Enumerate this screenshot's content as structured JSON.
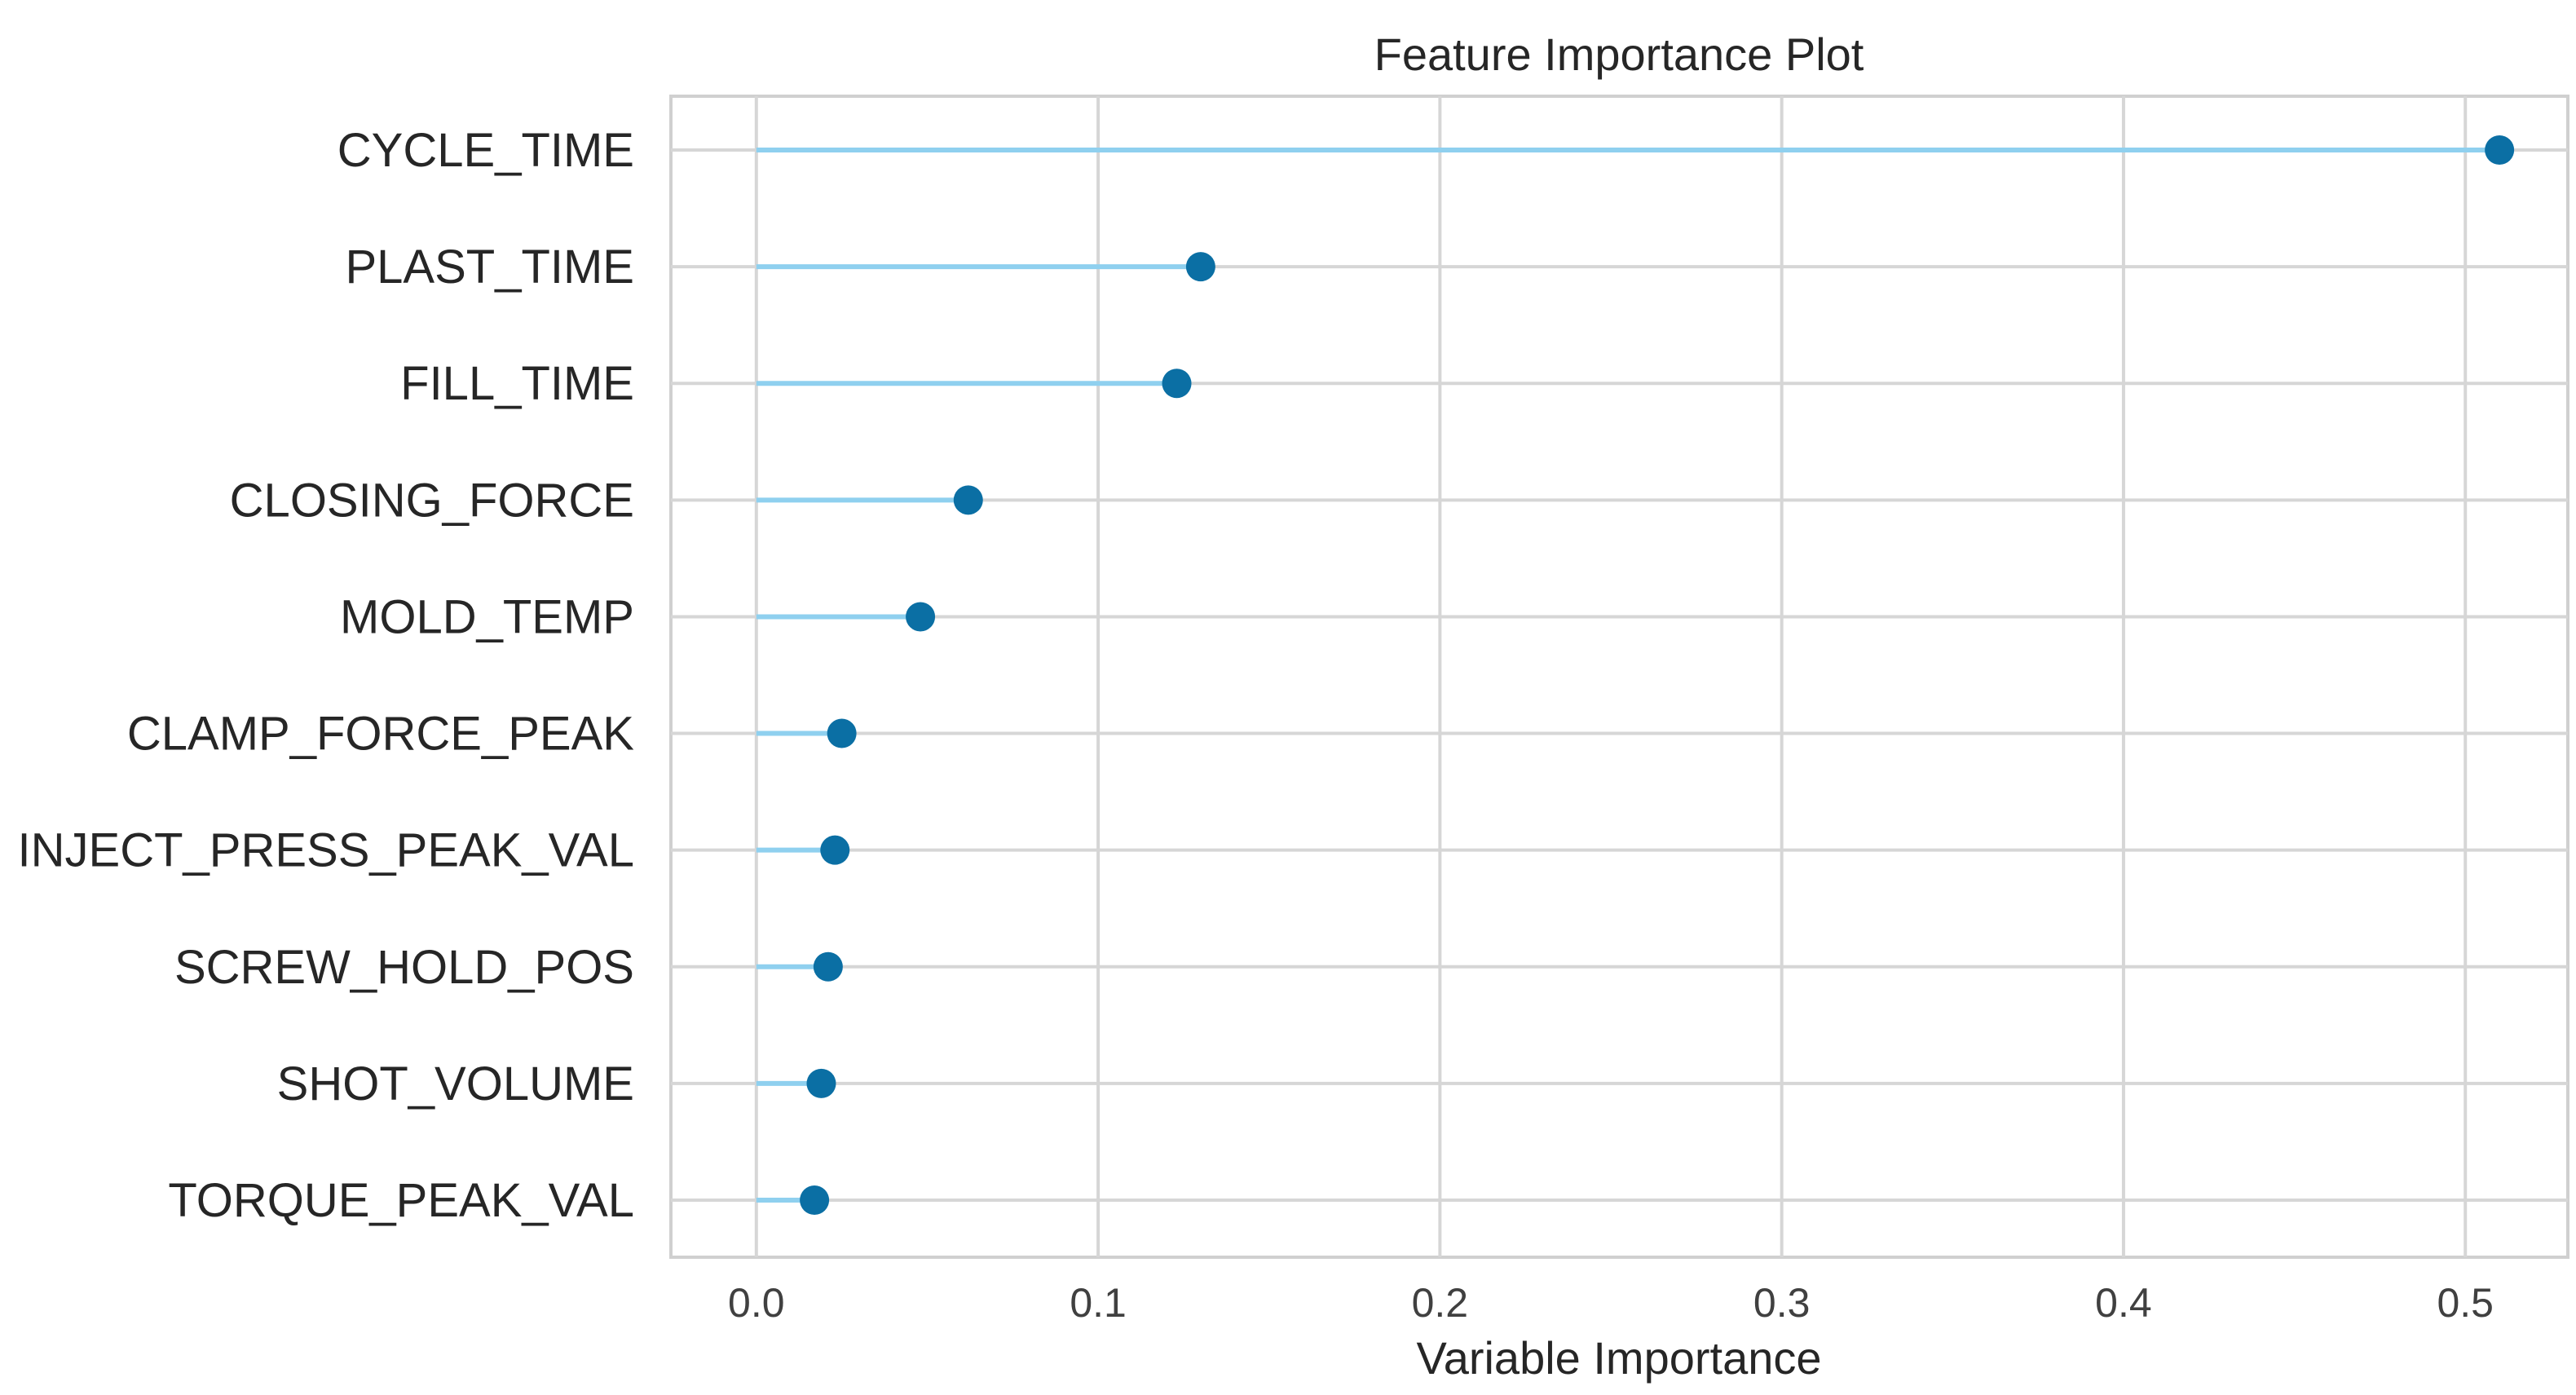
{
  "chart_data": {
    "type": "lollipop",
    "title": "Feature Importance Plot",
    "xlabel": "Variable Importance",
    "ylabel": "",
    "xlim": [
      -0.025,
      0.53
    ],
    "xticks": [
      "0.0",
      "0.1",
      "0.2",
      "0.3",
      "0.4",
      "0.5"
    ],
    "tick_values": [
      0.0,
      0.1,
      0.2,
      0.3,
      0.4,
      0.5
    ],
    "grid": true,
    "categories": [
      "CYCLE_TIME",
      "PLAST_TIME",
      "FILL_TIME",
      "CLOSING_FORCE",
      "MOLD_TEMP",
      "CLAMP_FORCE_PEAK",
      "INJECT_PRESS_PEAK_VAL",
      "SCREW_HOLD_POS",
      "SHOT_VOLUME",
      "TORQUE_PEAK_VAL"
    ],
    "values": [
      0.51,
      0.13,
      0.123,
      0.062,
      0.048,
      0.025,
      0.023,
      0.021,
      0.019,
      0.017
    ],
    "colors": {
      "stem": "#8fd0ef",
      "marker": "#0b6fa4",
      "grid": "#d6d6d6",
      "frame": "#d0d0d0"
    }
  }
}
